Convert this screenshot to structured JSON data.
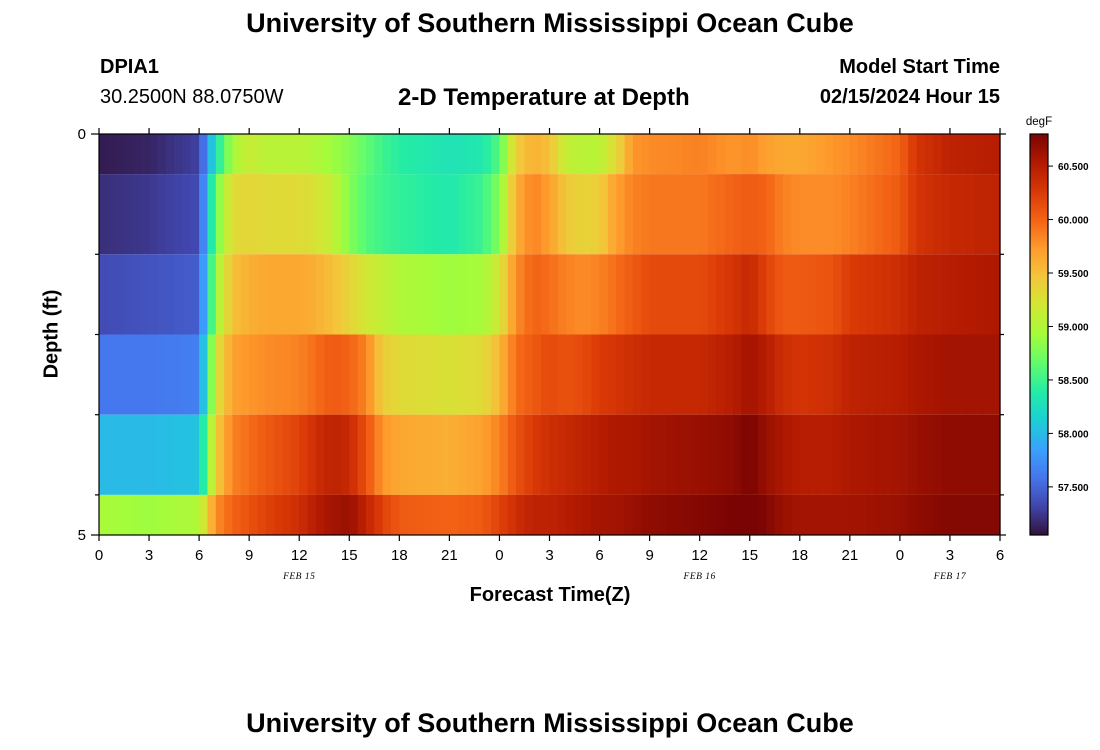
{
  "header": {
    "title": "University of Southern Mississippi Ocean Cube",
    "station_id": "DPIA1",
    "coordinates": "30.2500N  88.0750W",
    "plot_title": "2-D Temperature at Depth",
    "start_label": "Model Start Time",
    "start_value": "02/15/2024 Hour 15"
  },
  "footer": {
    "title": "University of Southern Mississippi Ocean Cube"
  },
  "colorbar": {
    "unit": "degF",
    "ticks": [
      "57.500",
      "58.000",
      "58.500",
      "59.000",
      "59.500",
      "60.000",
      "60.500"
    ],
    "min": 57.05,
    "max": 60.8
  },
  "chart_data": {
    "type": "heatmap",
    "title": "2-D Temperature at Depth",
    "xlabel": "Forecast Time(Z)",
    "ylabel": "Depth (ft)",
    "x_ticks": [
      "0",
      "3",
      "6",
      "9",
      "12",
      "15",
      "18",
      "21",
      "0",
      "3",
      "6",
      "9",
      "12",
      "15",
      "18",
      "21",
      "0",
      "3",
      "6"
    ],
    "x_hours": [
      0,
      3,
      6,
      9,
      12,
      15,
      18,
      21,
      24,
      27,
      30,
      33,
      36,
      39,
      42,
      45,
      48,
      51,
      54
    ],
    "date_labels": [
      {
        "label": "FEB 15",
        "hour": 12
      },
      {
        "label": "FEB 16",
        "hour": 36
      },
      {
        "label": "FEB 17",
        "hour": 51
      }
    ],
    "y_ticks": [
      "0",
      "5"
    ],
    "ylim": [
      0,
      5
    ],
    "xlim": [
      0,
      54
    ],
    "unit": "degF",
    "colormap": [
      "#30123b",
      "#4145ab",
      "#4675ed",
      "#39a2fc",
      "#1bcfd4",
      "#24eca6",
      "#61fc6c",
      "#a4fc3b",
      "#d1e834",
      "#f3c63a",
      "#fe9b2d",
      "#f36315",
      "#d93806",
      "#b11901",
      "#7a0403"
    ],
    "layer_depths": [
      "0-0.5",
      "0.5-1.5",
      "1.5-2.5",
      "2.5-3.5",
      "3.5-4.5",
      "4.5-5"
    ],
    "hours": [
      0,
      3,
      6,
      7,
      8,
      9,
      10,
      12,
      13,
      14,
      15,
      16,
      17,
      18,
      21,
      23,
      24,
      25,
      26,
      27,
      28,
      29,
      30,
      31,
      32,
      33,
      36,
      38,
      39,
      40,
      41,
      42,
      44,
      45,
      48,
      49,
      51,
      54
    ],
    "temperature_rows": [
      [
        57.1,
        57.15,
        57.3,
        58.3,
        58.95,
        59.15,
        59.05,
        59.05,
        59.0,
        58.9,
        58.8,
        58.65,
        58.5,
        58.4,
        58.3,
        58.35,
        58.6,
        59.4,
        59.6,
        59.5,
        59.1,
        59.05,
        59.05,
        59.3,
        59.75,
        59.8,
        59.85,
        59.75,
        59.8,
        59.7,
        59.65,
        59.65,
        59.75,
        59.8,
        60.0,
        60.3,
        60.45,
        60.5
      ],
      [
        57.2,
        57.25,
        57.35,
        58.7,
        59.3,
        59.35,
        59.3,
        59.3,
        59.25,
        59.1,
        58.8,
        58.6,
        58.5,
        58.45,
        58.35,
        58.5,
        58.8,
        59.6,
        59.85,
        59.7,
        59.45,
        59.35,
        59.4,
        59.7,
        59.85,
        59.9,
        59.9,
        60.0,
        60.05,
        60.0,
        59.85,
        59.8,
        59.8,
        59.85,
        60.05,
        60.3,
        60.4,
        60.45
      ],
      [
        57.35,
        57.4,
        57.45,
        58.9,
        59.5,
        59.6,
        59.65,
        59.65,
        59.6,
        59.5,
        59.35,
        59.2,
        59.1,
        59.0,
        58.9,
        58.95,
        59.2,
        59.8,
        60.0,
        59.95,
        59.85,
        59.8,
        59.85,
        59.95,
        60.05,
        60.15,
        60.15,
        60.3,
        60.4,
        60.2,
        60.05,
        60.05,
        60.1,
        60.25,
        60.35,
        60.45,
        60.5,
        60.55
      ],
      [
        57.6,
        57.6,
        57.65,
        59.2,
        59.7,
        59.75,
        59.8,
        59.85,
        59.95,
        60.05,
        60.0,
        59.85,
        59.4,
        59.3,
        59.25,
        59.3,
        59.55,
        59.95,
        60.05,
        60.15,
        60.1,
        60.15,
        60.25,
        60.3,
        60.35,
        60.4,
        60.4,
        60.5,
        60.6,
        60.5,
        60.35,
        60.3,
        60.35,
        60.45,
        60.5,
        60.55,
        60.6,
        60.6
      ],
      [
        58.0,
        58.0,
        58.05,
        59.4,
        59.85,
        59.95,
        60.05,
        60.2,
        60.35,
        60.45,
        60.4,
        60.1,
        59.75,
        59.65,
        59.6,
        59.7,
        59.85,
        60.1,
        60.25,
        60.35,
        60.4,
        60.45,
        60.5,
        60.55,
        60.55,
        60.6,
        60.65,
        60.7,
        60.8,
        60.65,
        60.55,
        60.5,
        60.5,
        60.55,
        60.6,
        60.65,
        60.7,
        60.7
      ],
      [
        58.95,
        58.9,
        59.0,
        59.8,
        60.0,
        60.1,
        60.2,
        60.35,
        60.5,
        60.6,
        60.65,
        60.45,
        60.2,
        60.05,
        60.0,
        60.05,
        60.2,
        60.35,
        60.45,
        60.45,
        60.5,
        60.55,
        60.6,
        60.6,
        60.65,
        60.7,
        60.75,
        60.8,
        60.9,
        60.75,
        60.65,
        60.6,
        60.6,
        60.6,
        60.65,
        60.7,
        60.75,
        60.75
      ]
    ]
  }
}
